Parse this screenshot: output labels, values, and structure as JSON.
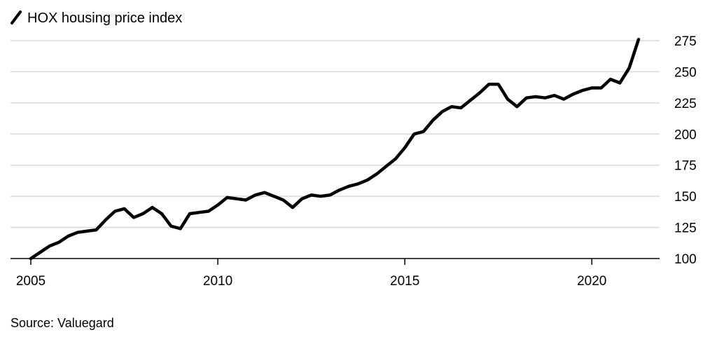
{
  "chart_data": {
    "type": "line",
    "title": "",
    "xlabel": "",
    "ylabel": "",
    "source": "Source: Valuegard",
    "legend": {
      "position": "top-left"
    },
    "grid": {
      "y": true,
      "x": false
    },
    "xlim": [
      2005.0,
      2021.8
    ],
    "ylim": [
      100,
      275
    ],
    "x_ticks": [
      {
        "value": 2005,
        "label": "2005"
      },
      {
        "value": 2010,
        "label": "2010"
      },
      {
        "value": 2015,
        "label": "2015"
      },
      {
        "value": 2020,
        "label": "2020"
      }
    ],
    "y_ticks": [
      {
        "value": 100,
        "label": "100"
      },
      {
        "value": 125,
        "label": "125"
      },
      {
        "value": 150,
        "label": "150"
      },
      {
        "value": 175,
        "label": "175"
      },
      {
        "value": 200,
        "label": "200"
      },
      {
        "value": 225,
        "label": "225"
      },
      {
        "value": 250,
        "label": "250"
      },
      {
        "value": 275,
        "label": "275"
      }
    ],
    "series": [
      {
        "name": "HOX housing price index",
        "color": "#000000",
        "x": [
          2005.0,
          2005.25,
          2005.5,
          2005.75,
          2006.0,
          2006.25,
          2006.5,
          2006.75,
          2007.0,
          2007.25,
          2007.5,
          2007.75,
          2008.0,
          2008.25,
          2008.5,
          2008.75,
          2009.0,
          2009.25,
          2009.5,
          2009.75,
          2010.0,
          2010.25,
          2010.5,
          2010.75,
          2011.0,
          2011.25,
          2011.5,
          2011.75,
          2012.0,
          2012.25,
          2012.5,
          2012.75,
          2013.0,
          2013.25,
          2013.5,
          2013.75,
          2014.0,
          2014.25,
          2014.5,
          2014.75,
          2015.0,
          2015.25,
          2015.5,
          2015.75,
          2016.0,
          2016.25,
          2016.5,
          2016.75,
          2017.0,
          2017.25,
          2017.5,
          2017.75,
          2018.0,
          2018.25,
          2018.5,
          2018.75,
          2019.0,
          2019.25,
          2019.5,
          2019.75,
          2020.0,
          2020.25,
          2020.5,
          2020.75,
          2021.0,
          2021.25
        ],
        "values": [
          100,
          105,
          110,
          113,
          118,
          121,
          122,
          123,
          131,
          138,
          140,
          133,
          136,
          141,
          136,
          126,
          124,
          136,
          137,
          138,
          143,
          149,
          148,
          147,
          151,
          153,
          150,
          147,
          141,
          148,
          151,
          150,
          151,
          155,
          158,
          160,
          163,
          168,
          174,
          180,
          189,
          200,
          202,
          211,
          218,
          222,
          221,
          227,
          233,
          240,
          240,
          228,
          222,
          229,
          230,
          229,
          231,
          228,
          232,
          235,
          237,
          237,
          244,
          241,
          253,
          276
        ]
      }
    ]
  }
}
